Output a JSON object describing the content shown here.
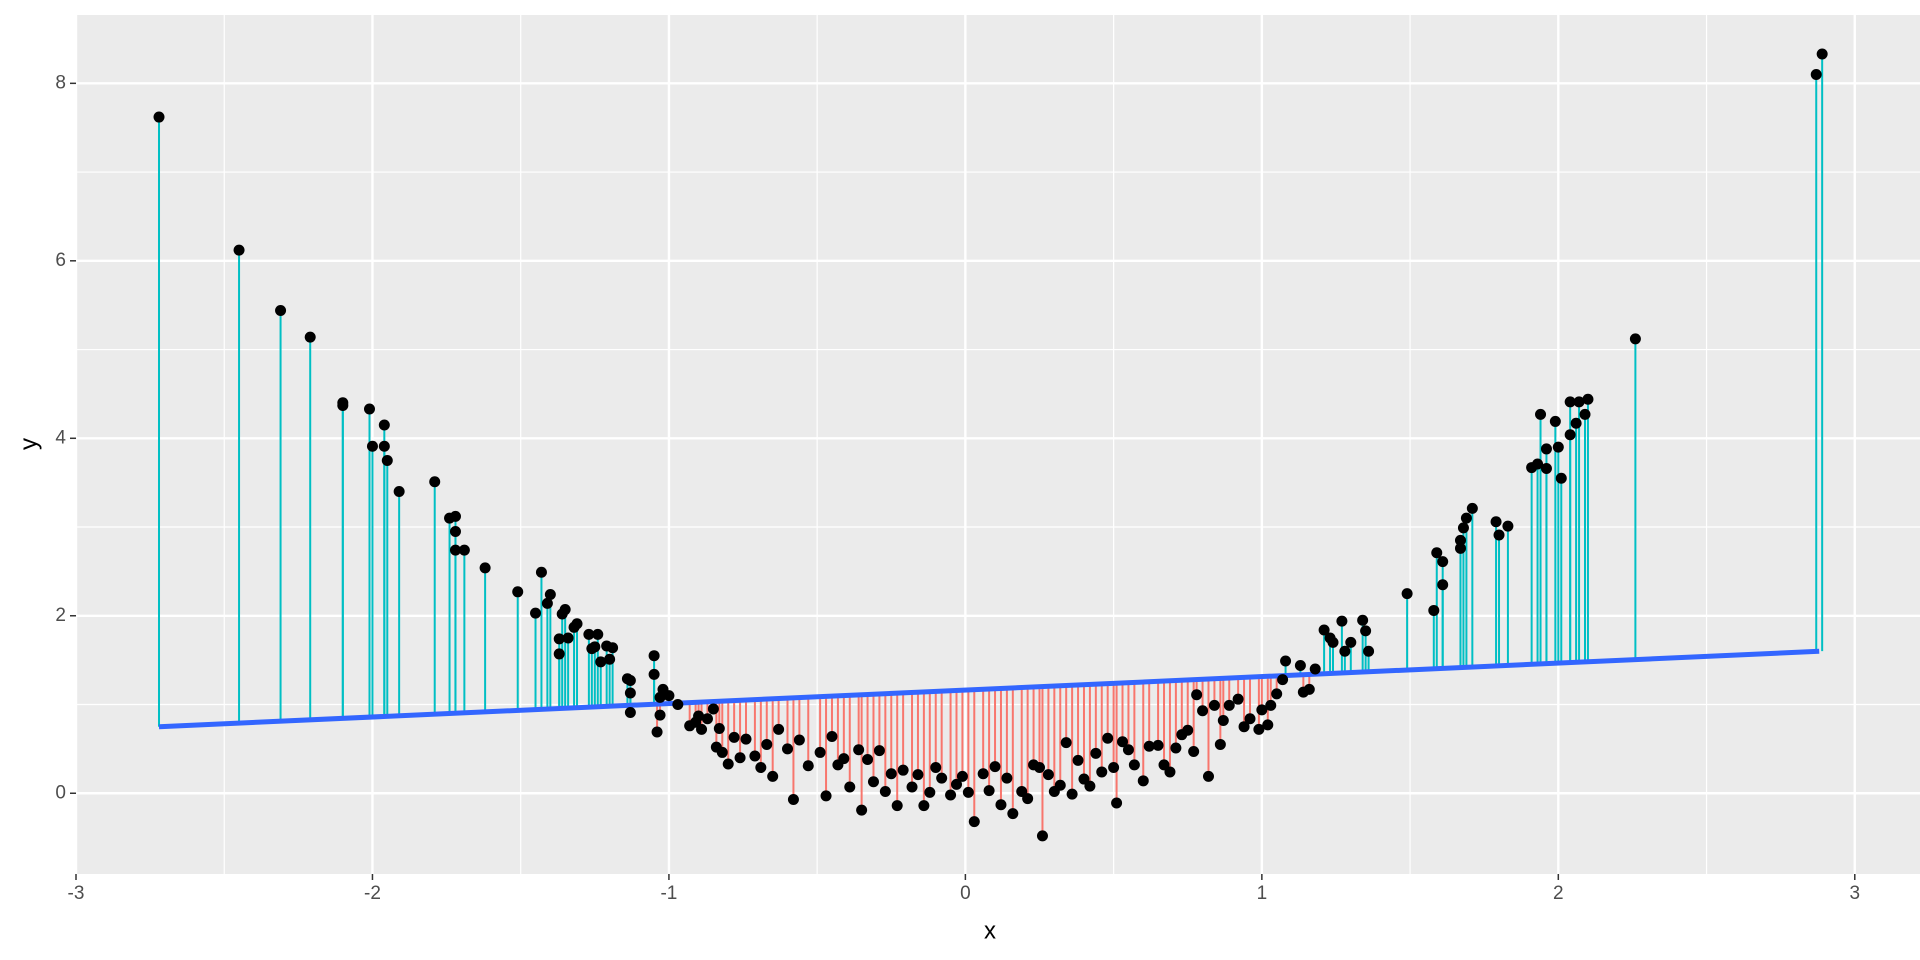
{
  "chart_data": {
    "type": "residual-scatter",
    "x_label": "x",
    "y_label": "y",
    "xlim": [
      -3,
      3.22
    ],
    "ylim": [
      -0.91,
      8.77
    ],
    "xticks": [
      -3,
      -2,
      -1,
      0,
      1,
      2,
      3
    ],
    "yticks": [
      0,
      2,
      4,
      6,
      8
    ],
    "grid": true,
    "point_color": "#000000",
    "above_color": "#00BFC4",
    "below_color": "#F8766D",
    "fit_line": {
      "color": "#3366FF",
      "x": [
        -2.72,
        2.88
      ],
      "y": [
        0.75,
        1.6
      ]
    },
    "x": [
      -2.72,
      -2.45,
      -2.31,
      -2.21,
      -2.1,
      -2.1,
      -2.01,
      -2.0,
      -1.96,
      -1.96,
      -1.95,
      -1.91,
      -1.79,
      -1.74,
      -1.72,
      -1.72,
      -1.72,
      -1.69,
      -1.62,
      -1.51,
      -1.45,
      -1.43,
      -1.41,
      -1.4,
      -1.37,
      -1.37,
      -1.36,
      -1.35,
      -1.34,
      -1.32,
      -1.31,
      -1.27,
      -1.26,
      -1.25,
      -1.24,
      -1.23,
      -1.21,
      -1.2,
      -1.19,
      -1.14,
      -1.13,
      -1.13,
      -1.13,
      -1.05,
      -1.05,
      -1.04,
      -1.03,
      -1.03,
      -1.02,
      -1.0,
      -0.97,
      -0.93,
      -0.91,
      -0.9,
      -0.89,
      -0.87,
      -0.85,
      -0.84,
      -0.83,
      -0.82,
      -0.8,
      -0.78,
      -0.76,
      -0.74,
      -0.71,
      -0.69,
      -0.67,
      -0.65,
      -0.63,
      -0.6,
      -0.58,
      -0.56,
      -0.53,
      -0.49,
      -0.47,
      -0.45,
      -0.43,
      -0.41,
      -0.39,
      -0.36,
      -0.35,
      -0.33,
      -0.31,
      -0.29,
      -0.27,
      -0.25,
      -0.23,
      -0.21,
      -0.18,
      -0.16,
      -0.14,
      -0.12,
      -0.1,
      -0.08,
      -0.05,
      -0.03,
      -0.01,
      0.01,
      0.03,
      0.06,
      0.08,
      0.1,
      0.12,
      0.14,
      0.16,
      0.19,
      0.21,
      0.23,
      0.25,
      0.26,
      0.28,
      0.3,
      0.32,
      0.34,
      0.36,
      0.38,
      0.4,
      0.42,
      0.44,
      0.46,
      0.48,
      0.5,
      0.51,
      0.53,
      0.55,
      0.57,
      0.6,
      0.62,
      0.65,
      0.67,
      0.69,
      0.71,
      0.73,
      0.75,
      0.77,
      0.78,
      0.8,
      0.82,
      0.84,
      0.86,
      0.87,
      0.89,
      0.92,
      0.94,
      0.96,
      0.99,
      1.0,
      1.02,
      1.03,
      1.05,
      1.07,
      1.08,
      1.13,
      1.14,
      1.16,
      1.18,
      1.21,
      1.23,
      1.24,
      1.27,
      1.28,
      1.3,
      1.34,
      1.35,
      1.36,
      1.49,
      1.58,
      1.59,
      1.61,
      1.61,
      1.67,
      1.67,
      1.68,
      1.69,
      1.71,
      1.79,
      1.8,
      1.83,
      1.91,
      1.93,
      1.94,
      1.96,
      1.96,
      1.99,
      2.0,
      2.01,
      2.04,
      2.04,
      2.06,
      2.07,
      2.09,
      2.1,
      2.26,
      2.87,
      2.89
    ],
    "y": [
      7.62,
      6.12,
      5.44,
      5.14,
      4.4,
      4.37,
      4.33,
      3.91,
      4.15,
      3.91,
      3.75,
      3.4,
      3.51,
      3.1,
      3.12,
      2.95,
      2.74,
      2.74,
      2.54,
      2.27,
      2.03,
      2.49,
      2.14,
      2.24,
      1.74,
      1.57,
      2.02,
      2.07,
      1.75,
      1.87,
      1.91,
      1.79,
      1.63,
      1.65,
      1.79,
      1.48,
      1.66,
      1.51,
      1.64,
      1.29,
      1.27,
      1.13,
      0.91,
      1.55,
      1.34,
      0.69,
      0.88,
      1.08,
      1.17,
      1.1,
      1.0,
      0.76,
      0.8,
      0.87,
      0.72,
      0.84,
      0.95,
      0.52,
      0.73,
      0.46,
      0.33,
      0.63,
      0.4,
      0.61,
      0.42,
      0.29,
      0.55,
      0.19,
      0.72,
      0.5,
      -0.07,
      0.6,
      0.31,
      0.46,
      -0.03,
      0.64,
      0.32,
      0.39,
      0.07,
      0.49,
      -0.19,
      0.38,
      0.13,
      0.48,
      0.02,
      0.22,
      -0.14,
      0.26,
      0.07,
      0.21,
      -0.14,
      0.01,
      0.29,
      0.17,
      -0.02,
      0.1,
      0.19,
      0.01,
      -0.32,
      0.22,
      0.03,
      0.3,
      -0.13,
      0.17,
      -0.23,
      0.02,
      -0.06,
      0.32,
      0.29,
      -0.48,
      0.21,
      0.02,
      0.09,
      0.57,
      -0.01,
      0.37,
      0.16,
      0.08,
      0.45,
      0.24,
      0.62,
      0.29,
      -0.11,
      0.58,
      0.49,
      0.32,
      0.14,
      0.53,
      0.54,
      0.32,
      0.24,
      0.51,
      0.66,
      0.71,
      0.47,
      1.11,
      0.93,
      0.19,
      0.99,
      0.55,
      0.82,
      0.99,
      1.06,
      0.75,
      0.84,
      0.72,
      0.94,
      0.77,
      0.99,
      1.12,
      1.28,
      1.49,
      1.44,
      1.14,
      1.17,
      1.4,
      1.84,
      1.75,
      1.7,
      1.94,
      1.6,
      1.7,
      1.95,
      1.83,
      1.6,
      2.25,
      2.06,
      2.71,
      2.61,
      2.35,
      2.76,
      2.85,
      2.99,
      3.1,
      3.21,
      3.06,
      2.91,
      3.01,
      3.67,
      3.71,
      4.27,
      3.66,
      3.88,
      4.19,
      3.9,
      3.55,
      4.41,
      4.04,
      4.17,
      4.41,
      4.27,
      4.44,
      5.12,
      8.1,
      8.33
    ]
  }
}
